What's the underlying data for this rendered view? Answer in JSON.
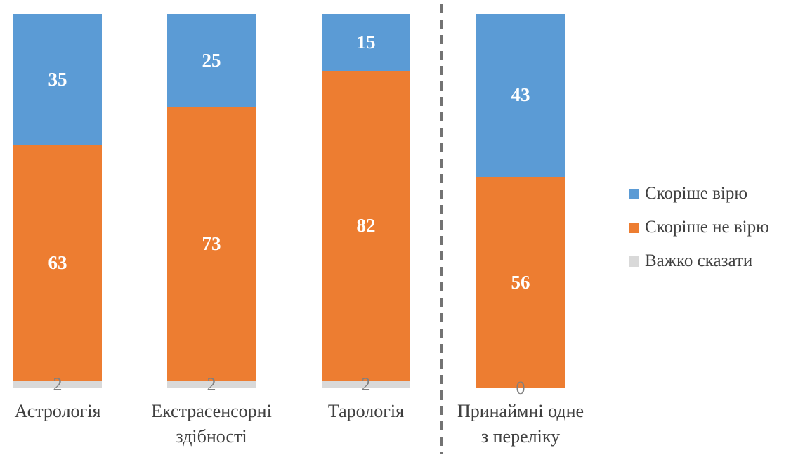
{
  "chart_data": {
    "type": "bar",
    "subtype": "stacked-100-percent",
    "title": "",
    "xlabel": "",
    "ylabel": "",
    "axes_visible": false,
    "grid": false,
    "legend_position": "right",
    "categories": [
      "Астрологія",
      "Екстрасенсорні\nздібності",
      "Тарологія",
      "Принаймні одне\nз переліку"
    ],
    "series": [
      {
        "name": "Скоріше вірю",
        "color": "#5B9BD5",
        "values": [
          35,
          25,
          15,
          43
        ]
      },
      {
        "name": "Скоріше не вірю",
        "color": "#ED7D31",
        "values": [
          63,
          73,
          82,
          56
        ]
      },
      {
        "name": "Важко сказати",
        "color": "#D9D9D9",
        "values": [
          2,
          2,
          2,
          0
        ]
      }
    ],
    "separator_after_category_index": 2
  },
  "colors": {
    "background": "#FFFFFF",
    "value_label": "#FFFFFF",
    "muted_value_label": "#7F7F7F",
    "category_label": "#404040",
    "legend_label": "#404040",
    "separator": "#737373"
  }
}
